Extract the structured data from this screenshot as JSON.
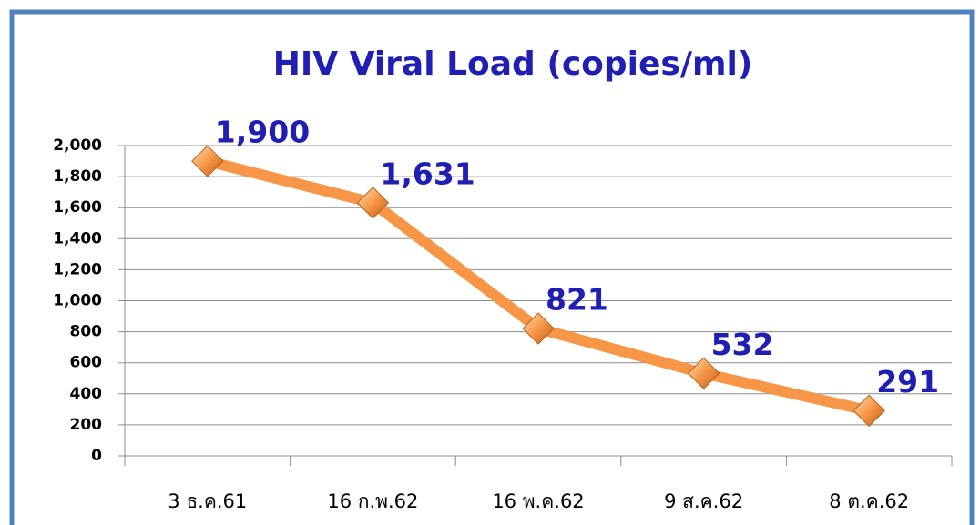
{
  "chart_data": {
    "type": "line",
    "title": "HIV Viral Load (copies/ml)",
    "categories": [
      "3 ธ.ค.61",
      "16 ก.พ.62",
      "16 พ.ค.62",
      "9 ส.ค.62",
      "8 ต.ค.62"
    ],
    "series": [
      {
        "name": "HIV Viral Load",
        "color": "#f79646",
        "values": [
          1900,
          1631,
          821,
          532,
          291
        ],
        "value_labels": [
          "1,900",
          "1,631",
          "821",
          "532",
          "291"
        ]
      }
    ],
    "ylim": [
      0,
      2000
    ],
    "yticks": [
      0,
      200,
      400,
      600,
      800,
      {
        "value": 1000,
        "label": "1,000"
      },
      {
        "value": 1200,
        "label": "1,200"
      },
      {
        "value": 1400,
        "label": "1,400"
      },
      {
        "value": 1600,
        "label": "1,600"
      },
      {
        "value": 1800,
        "label": "1,800"
      },
      {
        "value": 2000,
        "label": "2,000"
      }
    ],
    "grid": true
  }
}
